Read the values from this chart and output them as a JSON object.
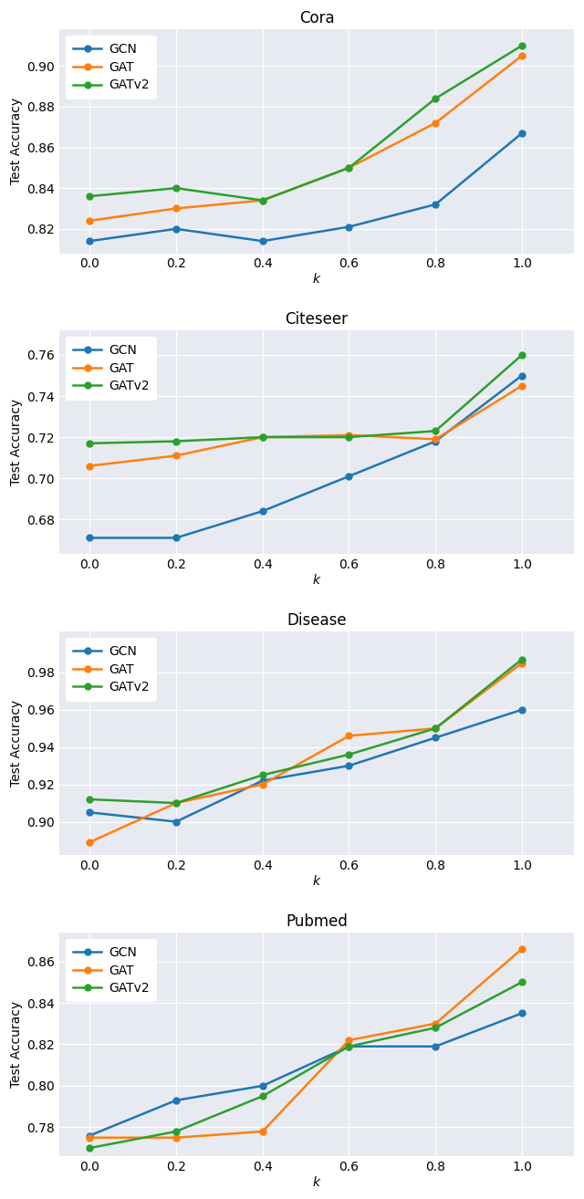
{
  "x": [
    0.0,
    0.2,
    0.4,
    0.6,
    0.8,
    1.0
  ],
  "datasets": {
    "Cora": {
      "GCN": [
        0.814,
        0.82,
        0.814,
        0.821,
        0.832,
        0.867
      ],
      "GAT": [
        0.824,
        0.83,
        0.834,
        0.85,
        0.872,
        0.905
      ],
      "GATv2": [
        0.836,
        0.84,
        0.834,
        0.85,
        0.884,
        0.91
      ]
    },
    "Citeseer": {
      "GCN": [
        0.671,
        0.671,
        0.684,
        0.701,
        0.718,
        0.75
      ],
      "GAT": [
        0.706,
        0.711,
        0.72,
        0.721,
        0.719,
        0.745
      ],
      "GATv2": [
        0.717,
        0.718,
        0.72,
        0.72,
        0.723,
        0.76
      ]
    },
    "Disease": {
      "GCN": [
        0.905,
        0.9,
        0.922,
        0.93,
        0.945,
        0.96
      ],
      "GAT": [
        0.889,
        0.91,
        0.92,
        0.946,
        0.95,
        0.985
      ],
      "GATv2": [
        0.912,
        0.91,
        0.925,
        0.936,
        0.95,
        0.987
      ]
    },
    "Pubmed": {
      "GCN": [
        0.776,
        0.793,
        0.8,
        0.819,
        0.819,
        0.835
      ],
      "GAT": [
        0.775,
        0.775,
        0.778,
        0.822,
        0.83,
        0.866
      ],
      "GATv2": [
        0.77,
        0.778,
        0.795,
        0.819,
        0.828,
        0.85
      ]
    }
  },
  "colors": {
    "GCN": "#1f77b4",
    "GAT": "#ff7f0e",
    "GATv2": "#2ca02c"
  },
  "ylabel": "Test Accuracy",
  "xlabel": "k",
  "fig_bg_color": "#ffffff",
  "plot_bg_color": "#e8eaf2",
  "grid_color": "#ffffff",
  "ylims": {
    "Cora": [
      0.808,
      0.918
    ],
    "Citeseer": [
      0.663,
      0.772
    ],
    "Disease": [
      0.882,
      1.002
    ],
    "Pubmed": [
      0.766,
      0.874
    ]
  },
  "yticks": {
    "Cora": [
      0.82,
      0.84,
      0.86,
      0.88,
      0.9
    ],
    "Citeseer": [
      0.68,
      0.7,
      0.72,
      0.74,
      0.76
    ],
    "Disease": [
      0.9,
      0.92,
      0.94,
      0.96,
      0.98
    ],
    "Pubmed": [
      0.78,
      0.8,
      0.82,
      0.84,
      0.86
    ]
  },
  "title_fontsize": 12,
  "label_fontsize": 10,
  "tick_fontsize": 10,
  "legend_fontsize": 10,
  "linewidth": 1.8,
  "markersize": 5
}
